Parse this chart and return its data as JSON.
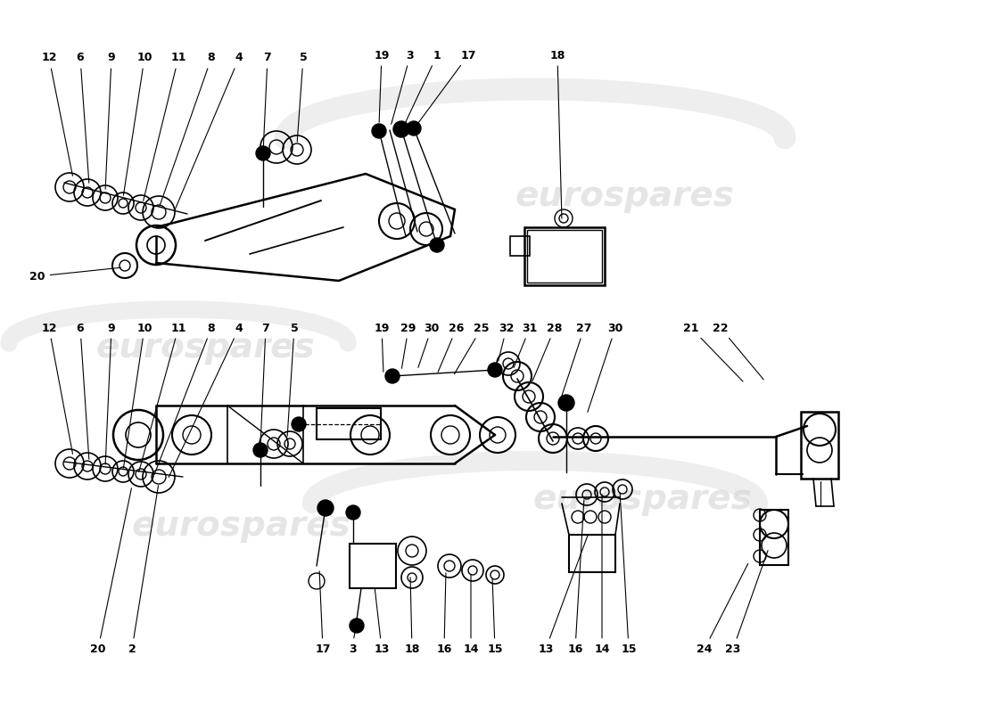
{
  "background_color": "#ffffff",
  "watermark_text": "eurospares",
  "watermark_color": "#cccccc",
  "line_color": "#000000",
  "text_color": "#000000",
  "upper_label_left": [
    "12",
    "6",
    "9",
    "10",
    "11",
    "8",
    "4",
    "7",
    "5"
  ],
  "upper_label_mid": [
    "19",
    "3",
    "1",
    "17"
  ],
  "upper_label_right": [
    "18"
  ],
  "lower_label_left": [
    "12",
    "6",
    "9",
    "10",
    "11",
    "8",
    "4",
    "7",
    "5"
  ],
  "lower_label_mid": [
    "19",
    "29",
    "30",
    "26",
    "25",
    "32",
    "31",
    "28",
    "27",
    "30"
  ],
  "lower_label_right": [
    "21",
    "22"
  ],
  "bottom_labels_left": [
    "20",
    "2"
  ],
  "bottom_labels_mid": [
    "17",
    "3",
    "13",
    "18",
    "16",
    "14",
    "15"
  ],
  "bottom_labels_right": [
    "13",
    "16",
    "14",
    "15",
    "24",
    "23"
  ]
}
